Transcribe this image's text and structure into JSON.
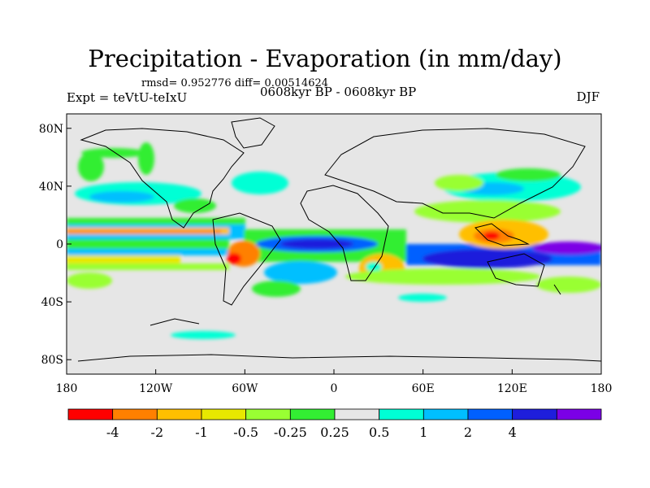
{
  "title": "Precipitation - Evaporation (in mm/day)",
  "stats": "rmsd= 0.952776 diff= 0.00514624",
  "experiment": "Expt = teVtU-teIxU",
  "period": "0608kyr BP - 0608kyr BP",
  "season": "DJF",
  "map": {
    "lat_ticks": [
      {
        "lat": 80,
        "label": "80N"
      },
      {
        "lat": 40,
        "label": "40N"
      },
      {
        "lat": 0,
        "label": "0"
      },
      {
        "lat": -40,
        "label": "40S"
      },
      {
        "lat": -80,
        "label": "80S"
      }
    ],
    "lon_ticks": [
      {
        "lon": -180,
        "label": "180"
      },
      {
        "lon": -120,
        "label": "120W"
      },
      {
        "lon": -60,
        "label": "60W"
      },
      {
        "lon": 0,
        "label": "0"
      },
      {
        "lon": 60,
        "label": "60E"
      },
      {
        "lon": 120,
        "label": "120E"
      },
      {
        "lon": 180,
        "label": "180"
      }
    ],
    "lat_range": [
      -90,
      90
    ],
    "lon_range": [
      -180,
      180
    ],
    "background_color": "#e6e6e6"
  },
  "colorbar": {
    "colors": [
      "#ff0000",
      "#ff8000",
      "#ffbf00",
      "#e8e800",
      "#99ff33",
      "#33ee33",
      "#e6e6e6",
      "#00ffd5",
      "#00bfff",
      "#0060ff",
      "#1e1edc",
      "#7b00e6"
    ],
    "labels": [
      "-4",
      "-2",
      "-1",
      "-0.5",
      "-0.25",
      "0.25",
      "0.5",
      "1",
      "2",
      "4"
    ]
  }
}
